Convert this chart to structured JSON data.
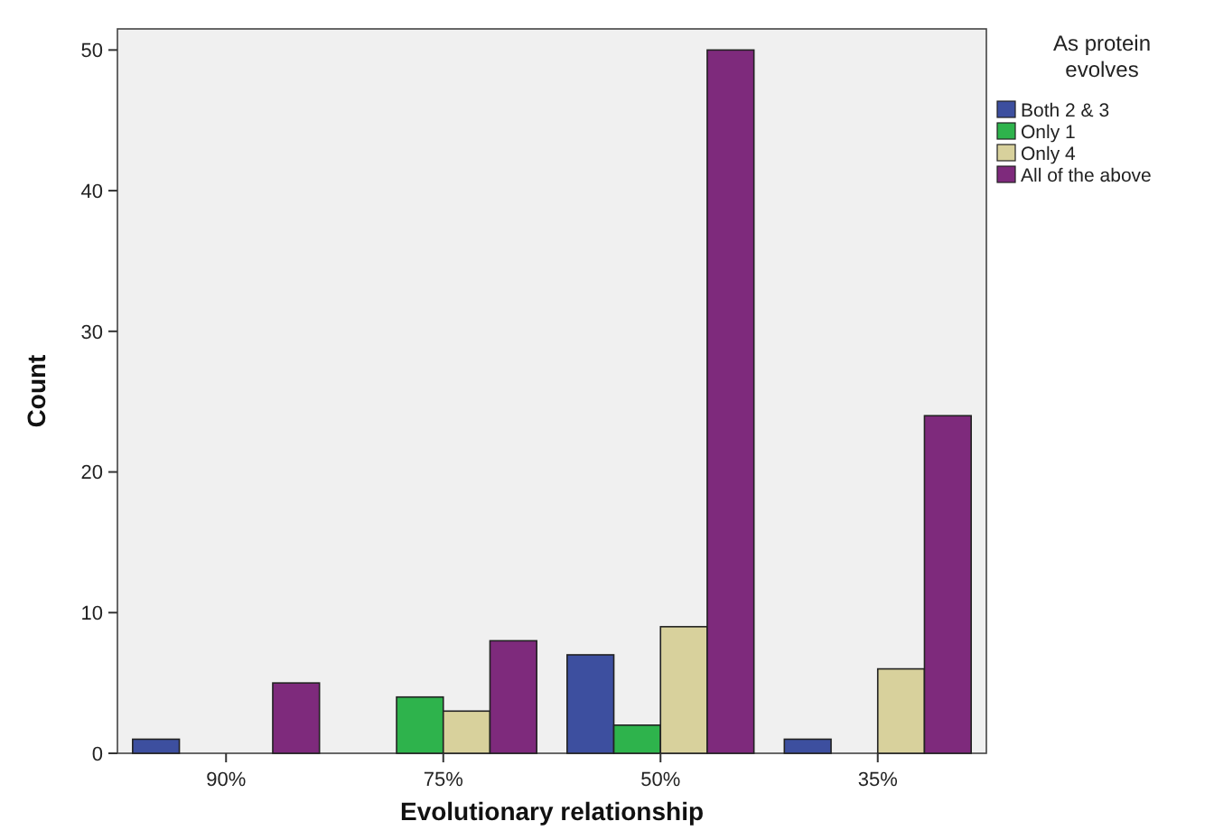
{
  "chart_data": {
    "type": "bar",
    "xlabel": "Evolutionary relationship",
    "ylabel": "Count",
    "legend_title": "As protein evolves",
    "categories": [
      "90%",
      "75%",
      "50%",
      "35%"
    ],
    "series": [
      {
        "name": "Both 2 & 3",
        "color": "#3d4f9f",
        "values": [
          1,
          null,
          7,
          1
        ]
      },
      {
        "name": "Only 1",
        "color": "#2eb34c",
        "values": [
          null,
          4,
          2,
          null
        ]
      },
      {
        "name": "Only 4",
        "color": "#d8d19c",
        "values": [
          null,
          3,
          9,
          6
        ]
      },
      {
        "name": "All of the above",
        "color": "#7e2a7c",
        "values": [
          5,
          8,
          50,
          24
        ]
      }
    ],
    "ylim": [
      0,
      51.5
    ],
    "yticks": [
      0,
      10,
      20,
      30,
      40,
      50
    ],
    "grid": false,
    "legend": "right"
  }
}
